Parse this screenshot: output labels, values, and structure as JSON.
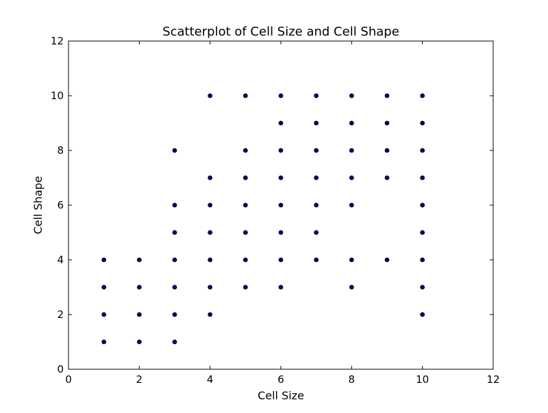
{
  "chart_data": {
    "type": "scatter",
    "title": "Scatterplot of Cell Size and Cell Shape",
    "xlabel": "Cell Size",
    "ylabel": "Cell Shape",
    "xlim": [
      0,
      12
    ],
    "ylim": [
      0,
      12
    ],
    "xticks": [
      0,
      2,
      4,
      6,
      8,
      10,
      12
    ],
    "yticks": [
      0,
      2,
      4,
      6,
      8,
      10,
      12
    ],
    "grid": false,
    "legend": "none",
    "marker_color": "#000080",
    "marker_edge_color": "#000000",
    "series": [
      {
        "points": [
          [
            1,
            1
          ],
          [
            1,
            2
          ],
          [
            1,
            3
          ],
          [
            1,
            4
          ],
          [
            2,
            1
          ],
          [
            2,
            2
          ],
          [
            2,
            3
          ],
          [
            2,
            4
          ],
          [
            3,
            1
          ],
          [
            3,
            2
          ],
          [
            3,
            3
          ],
          [
            3,
            4
          ],
          [
            3,
            5
          ],
          [
            3,
            6
          ],
          [
            3,
            8
          ],
          [
            4,
            2
          ],
          [
            4,
            3
          ],
          [
            4,
            4
          ],
          [
            4,
            5
          ],
          [
            4,
            6
          ],
          [
            4,
            7
          ],
          [
            4,
            10
          ],
          [
            5,
            3
          ],
          [
            5,
            4
          ],
          [
            5,
            5
          ],
          [
            5,
            6
          ],
          [
            5,
            7
          ],
          [
            5,
            8
          ],
          [
            5,
            10
          ],
          [
            6,
            3
          ],
          [
            6,
            4
          ],
          [
            6,
            5
          ],
          [
            6,
            6
          ],
          [
            6,
            7
          ],
          [
            6,
            8
          ],
          [
            6,
            9
          ],
          [
            6,
            10
          ],
          [
            7,
            4
          ],
          [
            7,
            5
          ],
          [
            7,
            6
          ],
          [
            7,
            7
          ],
          [
            7,
            8
          ],
          [
            7,
            9
          ],
          [
            7,
            10
          ],
          [
            8,
            3
          ],
          [
            8,
            4
          ],
          [
            8,
            6
          ],
          [
            8,
            7
          ],
          [
            8,
            8
          ],
          [
            8,
            9
          ],
          [
            8,
            10
          ],
          [
            9,
            4
          ],
          [
            9,
            7
          ],
          [
            9,
            8
          ],
          [
            9,
            9
          ],
          [
            9,
            10
          ],
          [
            10,
            2
          ],
          [
            10,
            3
          ],
          [
            10,
            4
          ],
          [
            10,
            5
          ],
          [
            10,
            6
          ],
          [
            10,
            7
          ],
          [
            10,
            8
          ],
          [
            10,
            9
          ],
          [
            10,
            10
          ]
        ]
      }
    ]
  }
}
